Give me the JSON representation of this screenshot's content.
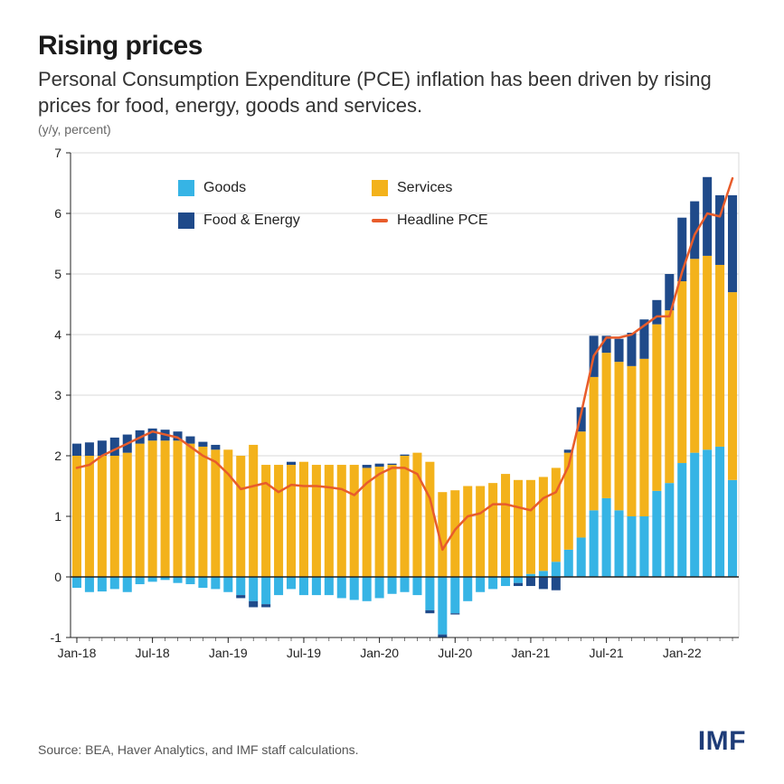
{
  "title": "Rising prices",
  "subtitle": "Personal Consumption Expenditure (PCE) inflation has been driven by rising prices for food, energy, goods and services.",
  "unit": "(y/y, percent)",
  "source": "Source: BEA, Haver Analytics, and IMF staff calculations.",
  "brand": "IMF",
  "colors": {
    "goods": "#36b4e5",
    "services": "#f3b21b",
    "food_energy": "#1f4a8a",
    "headline": "#e85c2b",
    "axis": "#222222",
    "grid": "#d9d9d9",
    "frame": "#d9d9d9"
  },
  "legend": {
    "goods": "Goods",
    "services": "Services",
    "food_energy": "Food & Energy",
    "headline": "Headline PCE"
  },
  "chart": {
    "type": "stacked-bar+line",
    "ylim": [
      -1,
      7
    ],
    "yticks": [
      -1,
      0,
      1,
      2,
      3,
      4,
      5,
      6,
      7
    ],
    "xticks": [
      {
        "i": 0,
        "label": "Jan-18"
      },
      {
        "i": 6,
        "label": "Jul-18"
      },
      {
        "i": 12,
        "label": "Jan-19"
      },
      {
        "i": 18,
        "label": "Jul-19"
      },
      {
        "i": 24,
        "label": "Jan-20"
      },
      {
        "i": 30,
        "label": "Jul-20"
      },
      {
        "i": 36,
        "label": "Jan-21"
      },
      {
        "i": 42,
        "label": "Jul-21"
      },
      {
        "i": 48,
        "label": "Jan-22"
      }
    ],
    "bar_width": 0.72,
    "line_width": 2.5,
    "n": 53,
    "series": {
      "goods": [
        -0.18,
        -0.25,
        -0.24,
        -0.2,
        -0.25,
        -0.12,
        -0.08,
        -0.05,
        -0.1,
        -0.12,
        -0.18,
        -0.2,
        -0.25,
        -0.3,
        -0.4,
        -0.45,
        -0.3,
        -0.2,
        -0.3,
        -0.3,
        -0.3,
        -0.35,
        -0.38,
        -0.4,
        -0.35,
        -0.28,
        -0.25,
        -0.3,
        -0.55,
        -0.95,
        -0.6,
        -0.4,
        -0.25,
        -0.2,
        -0.15,
        -0.1,
        0.05,
        0.1,
        0.25,
        0.45,
        0.65,
        1.1,
        1.3,
        1.1,
        1.0,
        1.0,
        1.42,
        1.55,
        1.88,
        2.05,
        2.1,
        2.15,
        1.6
      ],
      "services": [
        2.0,
        2.0,
        2.0,
        2.0,
        2.05,
        2.2,
        2.25,
        2.25,
        2.25,
        2.2,
        2.15,
        2.1,
        2.1,
        2.0,
        2.18,
        1.85,
        1.85,
        1.85,
        1.9,
        1.85,
        1.85,
        1.85,
        1.85,
        1.8,
        1.82,
        1.85,
        2.0,
        2.05,
        1.9,
        1.4,
        1.43,
        1.5,
        1.5,
        1.55,
        1.7,
        1.6,
        1.55,
        1.55,
        1.55,
        1.6,
        1.75,
        2.2,
        2.4,
        2.45,
        2.48,
        2.6,
        2.75,
        2.85,
        3.0,
        3.2,
        3.2,
        3.0,
        3.1
      ],
      "food_energy": [
        0.2,
        0.22,
        0.25,
        0.3,
        0.3,
        0.22,
        0.2,
        0.18,
        0.15,
        0.12,
        0.08,
        0.08,
        0.0,
        -0.05,
        -0.1,
        -0.05,
        0.0,
        0.05,
        0.0,
        0.0,
        0.0,
        0.0,
        0.0,
        0.05,
        0.05,
        0.02,
        0.02,
        0.0,
        -0.05,
        -0.05,
        -0.02,
        0.0,
        0.0,
        0.0,
        0.0,
        -0.05,
        -0.15,
        -0.2,
        -0.22,
        0.05,
        0.4,
        0.68,
        0.28,
        0.38,
        0.55,
        0.65,
        0.4,
        0.6,
        1.05,
        0.95,
        1.3,
        1.15,
        1.6
      ],
      "headline": [
        1.8,
        1.85,
        2.0,
        2.1,
        2.2,
        2.3,
        2.4,
        2.35,
        2.3,
        2.15,
        2.0,
        1.9,
        1.7,
        1.45,
        1.5,
        1.55,
        1.4,
        1.52,
        1.5,
        1.5,
        1.48,
        1.45,
        1.35,
        1.55,
        1.7,
        1.8,
        1.8,
        1.7,
        1.3,
        0.45,
        0.78,
        1.0,
        1.05,
        1.2,
        1.2,
        1.15,
        1.1,
        1.3,
        1.4,
        1.83,
        2.7,
        3.65,
        3.95,
        3.95,
        4.0,
        4.15,
        4.3,
        4.3,
        5.03,
        5.65,
        6.0,
        5.95,
        6.58
      ]
    }
  }
}
